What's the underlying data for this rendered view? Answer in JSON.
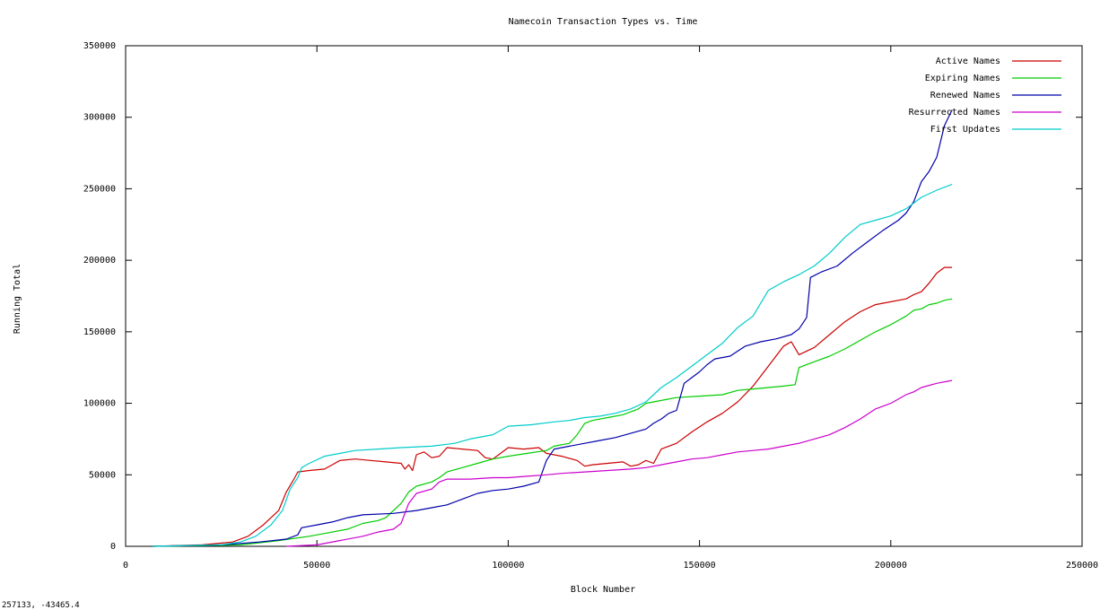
{
  "status_readout": "257133, -43465.4",
  "chart_data": {
    "type": "line",
    "title": "Namecoin Transaction Types vs. Time",
    "xlabel": "Block Number",
    "ylabel": "Running Total",
    "xlim": [
      0,
      250000
    ],
    "ylim": [
      0,
      350000
    ],
    "xticks": [
      0,
      50000,
      100000,
      150000,
      200000,
      250000
    ],
    "yticks": [
      0,
      50000,
      100000,
      150000,
      200000,
      250000,
      300000,
      350000
    ],
    "grid": false,
    "legend_position": "top-right",
    "series": [
      {
        "name": "Active Names",
        "color": "#cc0000",
        "points": [
          [
            7000,
            0
          ],
          [
            20000,
            1000
          ],
          [
            28000,
            3000
          ],
          [
            32000,
            7000
          ],
          [
            36000,
            15000
          ],
          [
            40000,
            25000
          ],
          [
            42000,
            38000
          ],
          [
            44000,
            47000
          ],
          [
            45000,
            52000
          ],
          [
            48000,
            53000
          ],
          [
            52000,
            54000
          ],
          [
            54000,
            57000
          ],
          [
            56000,
            60000
          ],
          [
            60000,
            61000
          ],
          [
            64000,
            60000
          ],
          [
            68000,
            59000
          ],
          [
            72000,
            58000
          ],
          [
            73000,
            54000
          ],
          [
            74000,
            57000
          ],
          [
            75000,
            53000
          ],
          [
            76000,
            64000
          ],
          [
            78000,
            66000
          ],
          [
            80000,
            62000
          ],
          [
            82000,
            63000
          ],
          [
            84000,
            69000
          ],
          [
            88000,
            68000
          ],
          [
            92000,
            67000
          ],
          [
            94000,
            62000
          ],
          [
            96000,
            61000
          ],
          [
            98000,
            65000
          ],
          [
            100000,
            69000
          ],
          [
            104000,
            68000
          ],
          [
            108000,
            69000
          ],
          [
            110000,
            65000
          ],
          [
            114000,
            63000
          ],
          [
            118000,
            60000
          ],
          [
            120000,
            56000
          ],
          [
            122000,
            57000
          ],
          [
            126000,
            58000
          ],
          [
            130000,
            59000
          ],
          [
            132000,
            56000
          ],
          [
            134000,
            57000
          ],
          [
            136000,
            60000
          ],
          [
            138000,
            58000
          ],
          [
            140000,
            68000
          ],
          [
            144000,
            72000
          ],
          [
            148000,
            80000
          ],
          [
            152000,
            87000
          ],
          [
            156000,
            93000
          ],
          [
            160000,
            101000
          ],
          [
            164000,
            112000
          ],
          [
            168000,
            126000
          ],
          [
            172000,
            140000
          ],
          [
            174000,
            143000
          ],
          [
            176000,
            134000
          ],
          [
            180000,
            139000
          ],
          [
            184000,
            148000
          ],
          [
            188000,
            157000
          ],
          [
            192000,
            164000
          ],
          [
            196000,
            169000
          ],
          [
            200000,
            171000
          ],
          [
            204000,
            173000
          ],
          [
            206000,
            176000
          ],
          [
            208000,
            178000
          ],
          [
            210000,
            184000
          ],
          [
            212000,
            191000
          ],
          [
            214000,
            195000
          ],
          [
            216000,
            195000
          ]
        ]
      },
      {
        "name": "Expiring Names",
        "color": "#00cc00",
        "points": [
          [
            7000,
            0
          ],
          [
            30000,
            1000
          ],
          [
            40000,
            4000
          ],
          [
            48000,
            7000
          ],
          [
            52000,
            9000
          ],
          [
            58000,
            12000
          ],
          [
            62000,
            16000
          ],
          [
            66000,
            18000
          ],
          [
            68000,
            20000
          ],
          [
            72000,
            30000
          ],
          [
            74000,
            38000
          ],
          [
            76000,
            42000
          ],
          [
            80000,
            45000
          ],
          [
            82000,
            48000
          ],
          [
            84000,
            52000
          ],
          [
            88000,
            55000
          ],
          [
            92000,
            58000
          ],
          [
            96000,
            61000
          ],
          [
            100000,
            63000
          ],
          [
            105000,
            65000
          ],
          [
            110000,
            67000
          ],
          [
            112000,
            70000
          ],
          [
            116000,
            72000
          ],
          [
            118000,
            78000
          ],
          [
            120000,
            86000
          ],
          [
            122000,
            88000
          ],
          [
            126000,
            90000
          ],
          [
            130000,
            92000
          ],
          [
            134000,
            96000
          ],
          [
            136000,
            100000
          ],
          [
            140000,
            102000
          ],
          [
            144000,
            104000
          ],
          [
            150000,
            105000
          ],
          [
            156000,
            106000
          ],
          [
            160000,
            109000
          ],
          [
            164000,
            110000
          ],
          [
            168000,
            111000
          ],
          [
            172000,
            112000
          ],
          [
            175000,
            113000
          ],
          [
            176000,
            125000
          ],
          [
            180000,
            129000
          ],
          [
            184000,
            133000
          ],
          [
            188000,
            138000
          ],
          [
            192000,
            144000
          ],
          [
            196000,
            150000
          ],
          [
            200000,
            155000
          ],
          [
            204000,
            161000
          ],
          [
            206000,
            165000
          ],
          [
            208000,
            166000
          ],
          [
            210000,
            169000
          ],
          [
            212000,
            170000
          ],
          [
            214000,
            172000
          ],
          [
            216000,
            173000
          ]
        ]
      },
      {
        "name": "Renewed Names",
        "color": "#0000aa",
        "points": [
          [
            7000,
            0
          ],
          [
            25000,
            1000
          ],
          [
            35000,
            3000
          ],
          [
            42000,
            5000
          ],
          [
            45000,
            8000
          ],
          [
            46000,
            13000
          ],
          [
            50000,
            15000
          ],
          [
            54000,
            17000
          ],
          [
            58000,
            20000
          ],
          [
            62000,
            22000
          ],
          [
            70000,
            23000
          ],
          [
            76000,
            25000
          ],
          [
            80000,
            27000
          ],
          [
            84000,
            29000
          ],
          [
            88000,
            33000
          ],
          [
            92000,
            37000
          ],
          [
            96000,
            39000
          ],
          [
            100000,
            40000
          ],
          [
            104000,
            42000
          ],
          [
            108000,
            45000
          ],
          [
            110000,
            60000
          ],
          [
            112000,
            68000
          ],
          [
            116000,
            70000
          ],
          [
            120000,
            72000
          ],
          [
            124000,
            74000
          ],
          [
            128000,
            76000
          ],
          [
            132000,
            79000
          ],
          [
            136000,
            82000
          ],
          [
            138000,
            86000
          ],
          [
            140000,
            89000
          ],
          [
            142000,
            93000
          ],
          [
            144000,
            95000
          ],
          [
            146000,
            114000
          ],
          [
            148000,
            118000
          ],
          [
            150000,
            122000
          ],
          [
            152000,
            127000
          ],
          [
            154000,
            131000
          ],
          [
            158000,
            133000
          ],
          [
            162000,
            140000
          ],
          [
            166000,
            143000
          ],
          [
            170000,
            145000
          ],
          [
            174000,
            148000
          ],
          [
            176000,
            152000
          ],
          [
            178000,
            160000
          ],
          [
            179000,
            188000
          ],
          [
            182000,
            192000
          ],
          [
            186000,
            196000
          ],
          [
            190000,
            205000
          ],
          [
            194000,
            213000
          ],
          [
            198000,
            221000
          ],
          [
            202000,
            228000
          ],
          [
            204000,
            233000
          ],
          [
            206000,
            241000
          ],
          [
            208000,
            255000
          ],
          [
            210000,
            262000
          ],
          [
            212000,
            272000
          ],
          [
            214000,
            294000
          ],
          [
            216000,
            305000
          ]
        ]
      },
      {
        "name": "Resurrected Names",
        "color": "#cc00cc",
        "points": [
          [
            42000,
            0
          ],
          [
            50000,
            1000
          ],
          [
            56000,
            4000
          ],
          [
            62000,
            7000
          ],
          [
            66000,
            10000
          ],
          [
            70000,
            12000
          ],
          [
            72000,
            16000
          ],
          [
            74000,
            30000
          ],
          [
            76000,
            37000
          ],
          [
            80000,
            40000
          ],
          [
            82000,
            45000
          ],
          [
            84000,
            47000
          ],
          [
            90000,
            47000
          ],
          [
            96000,
            48000
          ],
          [
            100000,
            48000
          ],
          [
            105000,
            49000
          ],
          [
            110000,
            50000
          ],
          [
            114000,
            51000
          ],
          [
            120000,
            52000
          ],
          [
            126000,
            53000
          ],
          [
            132000,
            54000
          ],
          [
            136000,
            55000
          ],
          [
            140000,
            57000
          ],
          [
            144000,
            59000
          ],
          [
            148000,
            61000
          ],
          [
            152000,
            62000
          ],
          [
            156000,
            64000
          ],
          [
            160000,
            66000
          ],
          [
            164000,
            67000
          ],
          [
            168000,
            68000
          ],
          [
            172000,
            70000
          ],
          [
            176000,
            72000
          ],
          [
            180000,
            75000
          ],
          [
            184000,
            78000
          ],
          [
            188000,
            83000
          ],
          [
            192000,
            89000
          ],
          [
            196000,
            96000
          ],
          [
            200000,
            100000
          ],
          [
            204000,
            106000
          ],
          [
            206000,
            108000
          ],
          [
            208000,
            111000
          ],
          [
            212000,
            114000
          ],
          [
            216000,
            116000
          ]
        ]
      },
      {
        "name": "First Updates",
        "color": "#00cccc",
        "points": [
          [
            7000,
            0
          ],
          [
            25000,
            1000
          ],
          [
            30000,
            3000
          ],
          [
            34000,
            7000
          ],
          [
            38000,
            15000
          ],
          [
            41000,
            25000
          ],
          [
            43000,
            40000
          ],
          [
            45000,
            48000
          ],
          [
            46000,
            55000
          ],
          [
            48000,
            58000
          ],
          [
            52000,
            63000
          ],
          [
            56000,
            65000
          ],
          [
            60000,
            67000
          ],
          [
            66000,
            68000
          ],
          [
            72000,
            69000
          ],
          [
            80000,
            70000
          ],
          [
            86000,
            72000
          ],
          [
            90000,
            75000
          ],
          [
            96000,
            78000
          ],
          [
            100000,
            84000
          ],
          [
            106000,
            85000
          ],
          [
            112000,
            87000
          ],
          [
            116000,
            88000
          ],
          [
            120000,
            90000
          ],
          [
            124000,
            91000
          ],
          [
            128000,
            93000
          ],
          [
            132000,
            96000
          ],
          [
            136000,
            101000
          ],
          [
            140000,
            111000
          ],
          [
            144000,
            118000
          ],
          [
            148000,
            126000
          ],
          [
            152000,
            134000
          ],
          [
            156000,
            142000
          ],
          [
            160000,
            153000
          ],
          [
            164000,
            161000
          ],
          [
            168000,
            179000
          ],
          [
            172000,
            185000
          ],
          [
            176000,
            190000
          ],
          [
            180000,
            196000
          ],
          [
            184000,
            205000
          ],
          [
            188000,
            216000
          ],
          [
            192000,
            225000
          ],
          [
            196000,
            228000
          ],
          [
            200000,
            231000
          ],
          [
            204000,
            236000
          ],
          [
            206000,
            240000
          ],
          [
            208000,
            244000
          ],
          [
            212000,
            249000
          ],
          [
            216000,
            253000
          ]
        ]
      }
    ]
  }
}
